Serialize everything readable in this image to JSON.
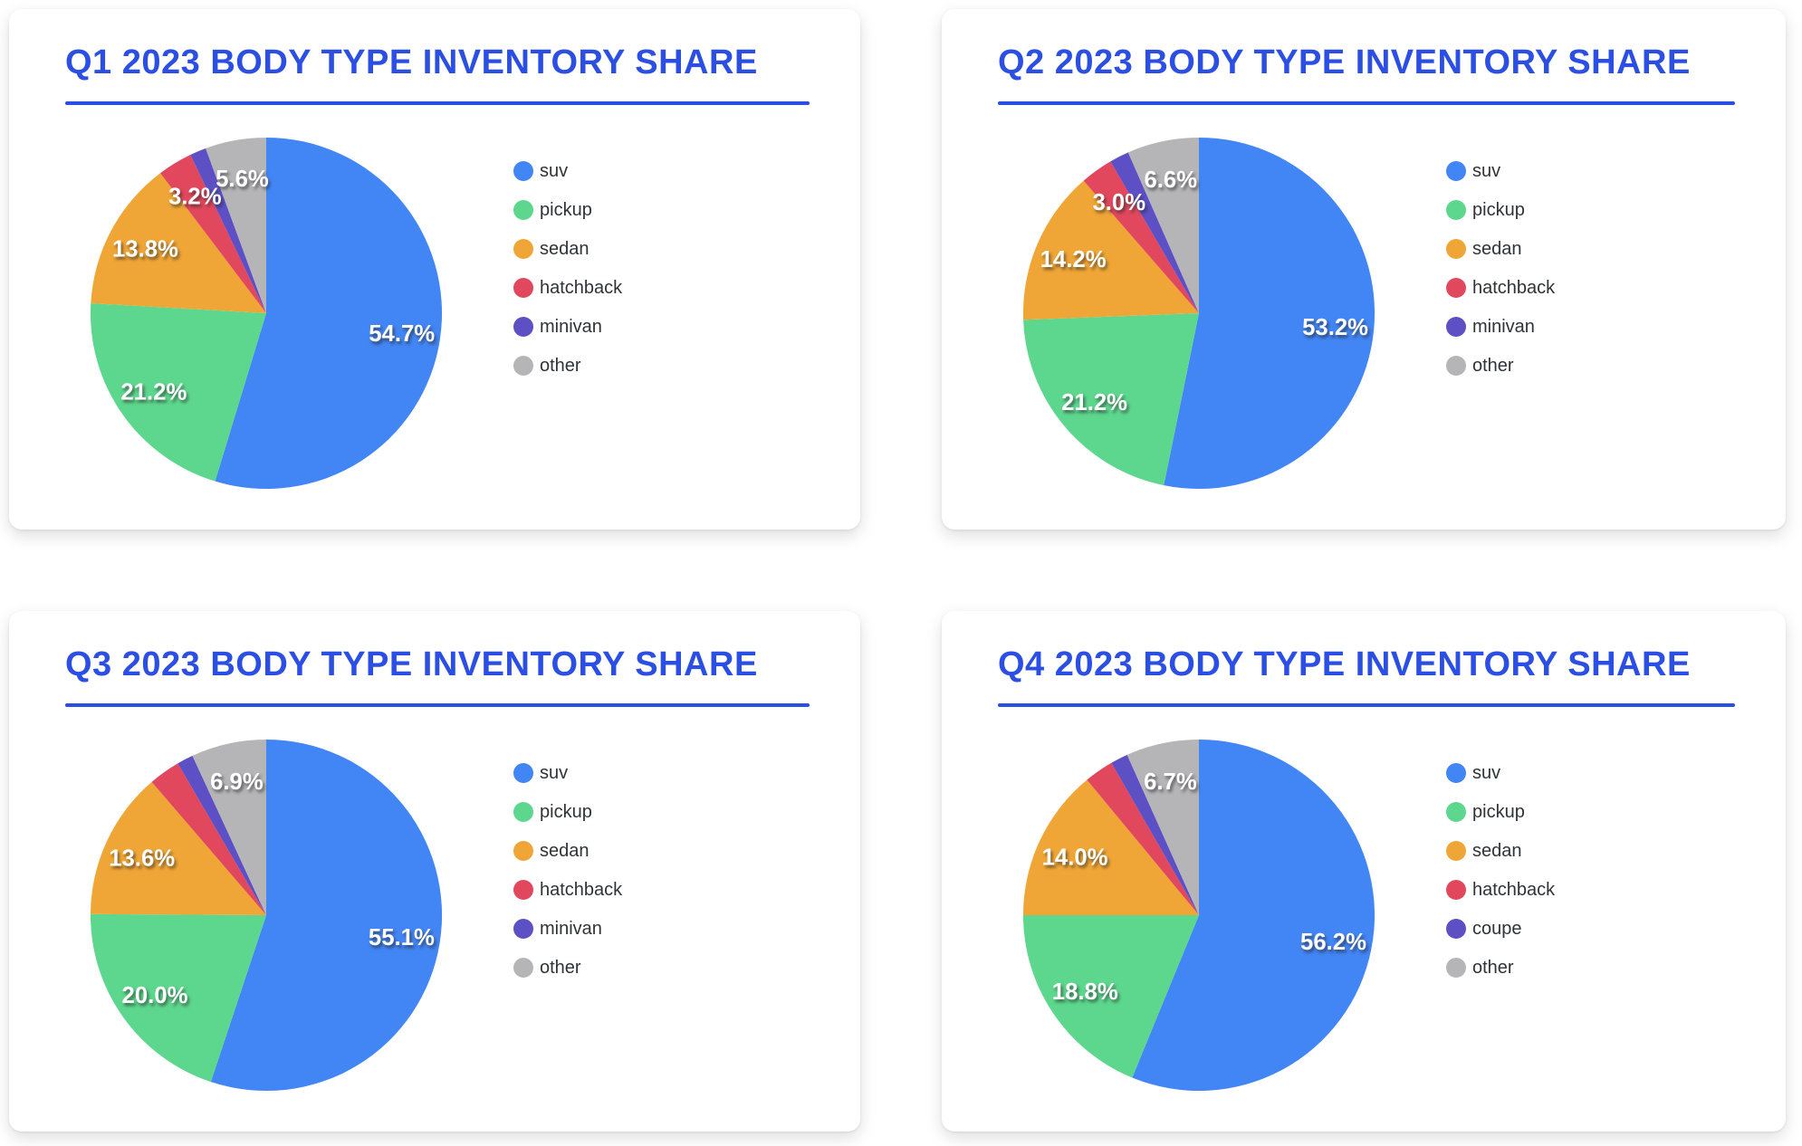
{
  "page": {
    "background": "#ffffff",
    "card_background": "#ffffff",
    "accent_blue": "#2B4FE2",
    "legend_text_color": "#2E3338",
    "slice_label_color": "#ffffff"
  },
  "chart_data": [
    {
      "type": "pie",
      "title": "Q1 2023 BODY TYPE INVENTORY SHARE",
      "labels": [
        "suv",
        "pickup",
        "sedan",
        "hatchback",
        "minivan",
        "other"
      ],
      "values": [
        54.7,
        21.2,
        13.8,
        3.2,
        1.5,
        5.6
      ],
      "slice_labels": [
        "54.7%",
        "21.2%",
        "13.8%",
        "3.2%",
        "",
        "5.6%"
      ],
      "colors": [
        "#4285F4",
        "#5DD78D",
        "#F0A636",
        "#E2485D",
        "#5C50C4",
        "#B5B5B8"
      ],
      "legend_position": "right",
      "start_angle": "12-oclock",
      "direction": "clockwise"
    },
    {
      "type": "pie",
      "title": "Q2 2023 BODY TYPE INVENTORY SHARE",
      "labels": [
        "suv",
        "pickup",
        "sedan",
        "hatchback",
        "minivan",
        "other"
      ],
      "values": [
        53.2,
        21.2,
        14.2,
        3.0,
        1.8,
        6.6
      ],
      "slice_labels": [
        "53.2%",
        "21.2%",
        "14.2%",
        "3.0%",
        "",
        "6.6%"
      ],
      "colors": [
        "#4285F4",
        "#5DD78D",
        "#F0A636",
        "#E2485D",
        "#5C50C4",
        "#B5B5B8"
      ],
      "legend_position": "right",
      "start_angle": "12-oclock",
      "direction": "clockwise"
    },
    {
      "type": "pie",
      "title": "Q3 2023 BODY TYPE INVENTORY SHARE",
      "labels": [
        "suv",
        "pickup",
        "sedan",
        "hatchback",
        "minivan",
        "other"
      ],
      "values": [
        55.1,
        20.0,
        13.6,
        2.9,
        1.5,
        6.9
      ],
      "slice_labels": [
        "55.1%",
        "20.0%",
        "13.6%",
        "",
        "",
        "6.9%"
      ],
      "colors": [
        "#4285F4",
        "#5DD78D",
        "#F0A636",
        "#E2485D",
        "#5C50C4",
        "#B5B5B8"
      ],
      "legend_position": "right",
      "start_angle": "12-oclock",
      "direction": "clockwise"
    },
    {
      "type": "pie",
      "title": "Q4 2023 BODY TYPE INVENTORY SHARE",
      "labels": [
        "suv",
        "pickup",
        "sedan",
        "hatchback",
        "coupe",
        "other"
      ],
      "values": [
        56.2,
        18.8,
        14.0,
        2.7,
        1.6,
        6.7
      ],
      "slice_labels": [
        "56.2%",
        "18.8%",
        "14.0%",
        "",
        "",
        "6.7%"
      ],
      "colors": [
        "#4285F4",
        "#5DD78D",
        "#F0A636",
        "#E2485D",
        "#5C50C4",
        "#B5B5B8"
      ],
      "legend_position": "right",
      "start_angle": "12-oclock",
      "direction": "clockwise"
    }
  ]
}
